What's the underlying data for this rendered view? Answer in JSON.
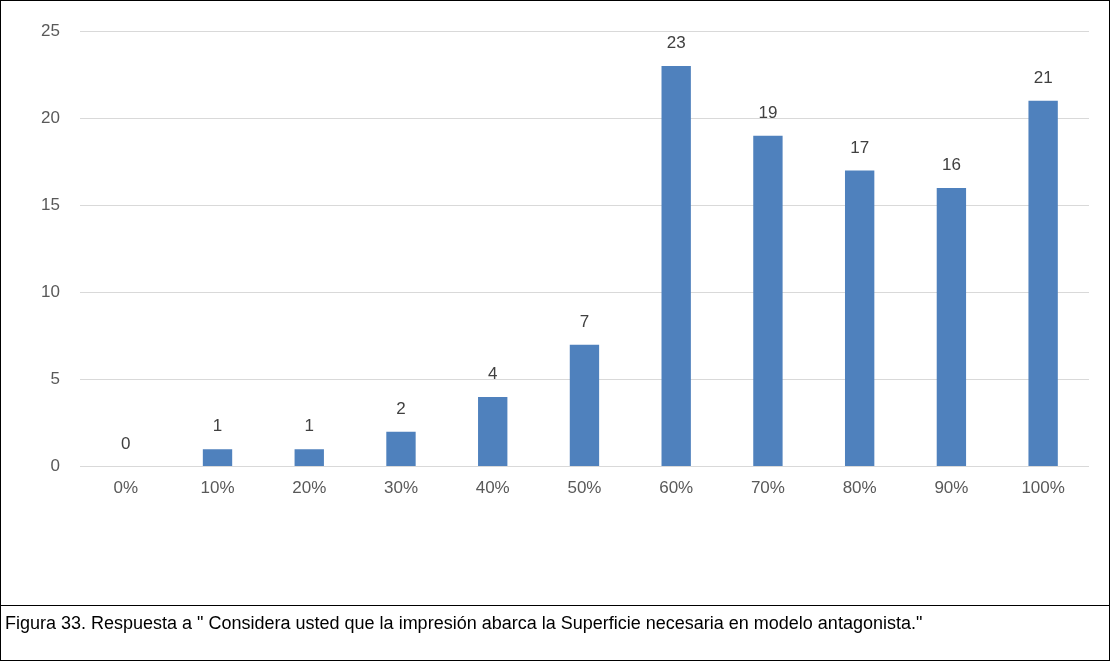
{
  "chart_data": {
    "type": "bar",
    "categories": [
      "0%",
      "10%",
      "20%",
      "30%",
      "40%",
      "50%",
      "60%",
      "70%",
      "80%",
      "90%",
      "100%"
    ],
    "values": [
      0,
      1,
      1,
      2,
      4,
      7,
      23,
      19,
      17,
      16,
      21
    ],
    "color": "#4f81bd",
    "ylim": [
      0,
      25
    ],
    "yticks": [
      0,
      5,
      10,
      15,
      20,
      25
    ],
    "grid": "y",
    "legend": false,
    "data_labels": true,
    "annotations": [
      "Figura 33. Respuesta a \" Considera usted que la impresión abarca la Superficie necesaria en modelo antagonista.\""
    ]
  }
}
